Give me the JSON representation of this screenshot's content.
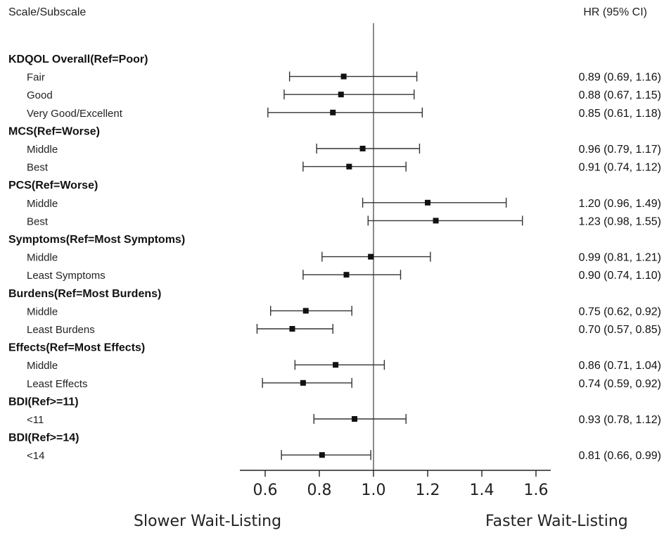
{
  "header": {
    "left": "Scale/Subscale",
    "right": "HR (95% CI)"
  },
  "footer": {
    "left": "Slower Wait-Listing",
    "right": "Faster Wait-Listing"
  },
  "chart_data": {
    "type": "forest",
    "xlim": [
      0.5,
      1.67
    ],
    "reference_line": 1.0,
    "x_ticks": [
      0.6,
      0.8,
      1.0,
      1.2,
      1.4,
      1.6
    ],
    "x_tick_labels": [
      "0.6",
      "0.8",
      "1.0",
      "1.2",
      "1.4",
      "1.6"
    ],
    "rows": [
      {
        "kind": "group",
        "label": "KDQOL Overall(Ref=Poor)"
      },
      {
        "kind": "item",
        "label": "Fair",
        "hr": 0.89,
        "lo": 0.69,
        "hi": 1.16,
        "text": "0.89 (0.69, 1.16)"
      },
      {
        "kind": "item",
        "label": "Good",
        "hr": 0.88,
        "lo": 0.67,
        "hi": 1.15,
        "text": "0.88 (0.67, 1.15)"
      },
      {
        "kind": "item",
        "label": "Very Good/Excellent",
        "hr": 0.85,
        "lo": 0.61,
        "hi": 1.18,
        "text": "0.85 (0.61, 1.18)"
      },
      {
        "kind": "group",
        "label": "MCS(Ref=Worse)"
      },
      {
        "kind": "item",
        "label": "Middle",
        "hr": 0.96,
        "lo": 0.79,
        "hi": 1.17,
        "text": "0.96 (0.79, 1.17)"
      },
      {
        "kind": "item",
        "label": "Best",
        "hr": 0.91,
        "lo": 0.74,
        "hi": 1.12,
        "text": "0.91 (0.74, 1.12)"
      },
      {
        "kind": "group",
        "label": "PCS(Ref=Worse)"
      },
      {
        "kind": "item",
        "label": "Middle",
        "hr": 1.2,
        "lo": 0.96,
        "hi": 1.49,
        "text": "1.20 (0.96, 1.49)"
      },
      {
        "kind": "item",
        "label": "Best",
        "hr": 1.23,
        "lo": 0.98,
        "hi": 1.55,
        "text": "1.23 (0.98, 1.55)"
      },
      {
        "kind": "group",
        "label": "Symptoms(Ref=Most Symptoms)"
      },
      {
        "kind": "item",
        "label": "Middle",
        "hr": 0.99,
        "lo": 0.81,
        "hi": 1.21,
        "text": "0.99 (0.81, 1.21)"
      },
      {
        "kind": "item",
        "label": "Least Symptoms",
        "hr": 0.9,
        "lo": 0.74,
        "hi": 1.1,
        "text": "0.90 (0.74, 1.10)"
      },
      {
        "kind": "group",
        "label": "Burdens(Ref=Most Burdens)"
      },
      {
        "kind": "item",
        "label": "Middle",
        "hr": 0.75,
        "lo": 0.62,
        "hi": 0.92,
        "text": "0.75 (0.62, 0.92)"
      },
      {
        "kind": "item",
        "label": "Least Burdens",
        "hr": 0.7,
        "lo": 0.57,
        "hi": 0.85,
        "text": "0.70 (0.57, 0.85)"
      },
      {
        "kind": "group",
        "label": "Effects(Ref=Most Effects)"
      },
      {
        "kind": "item",
        "label": "Middle",
        "hr": 0.86,
        "lo": 0.71,
        "hi": 1.04,
        "text": "0.86 (0.71, 1.04)"
      },
      {
        "kind": "item",
        "label": "Least Effects",
        "hr": 0.74,
        "lo": 0.59,
        "hi": 0.92,
        "text": "0.74 (0.59, 0.92)"
      },
      {
        "kind": "group",
        "label": "BDI(Ref>=11)"
      },
      {
        "kind": "item",
        "label": "<11",
        "hr": 0.93,
        "lo": 0.78,
        "hi": 1.12,
        "text": "0.93 (0.78, 1.12)"
      },
      {
        "kind": "group",
        "label": "BDI(Ref>=14)"
      },
      {
        "kind": "item",
        "label": "<14",
        "hr": 0.81,
        "lo": 0.66,
        "hi": 0.99,
        "text": "0.81 (0.66, 0.99)"
      }
    ]
  }
}
